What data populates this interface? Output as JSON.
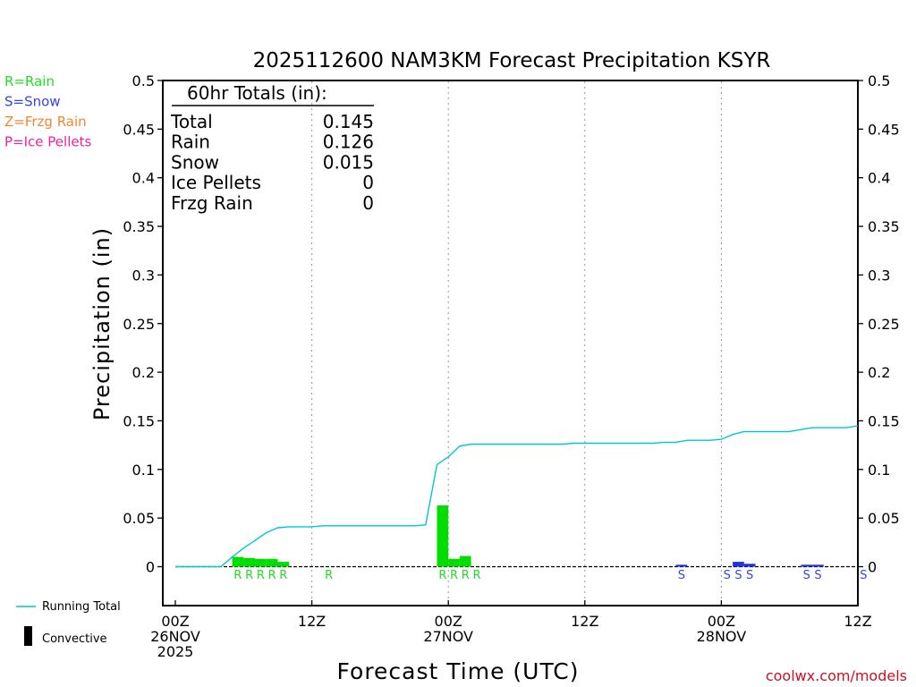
{
  "chart_data": {
    "type": "bar",
    "title": "2025112600 NAM3KM Forecast Precipitation KSYR",
    "xlabel": "Forecast Time (UTC)",
    "ylabel": "Precipitation (in)",
    "ylim": [
      -0.04,
      0.5
    ],
    "xlim_hours": [
      0,
      60
    ],
    "y_ticks": [
      0,
      0.05,
      0.1,
      0.15,
      0.2,
      0.25,
      0.3,
      0.35,
      0.4,
      0.45,
      0.5
    ],
    "y_tick_labels": [
      "0",
      "0.05",
      "0.1",
      "0.15",
      "0.2",
      "0.25",
      "0.3",
      "0.35",
      "0.4",
      "0.45",
      "0.5"
    ],
    "x_ticks": [
      {
        "hour": 0,
        "lines": [
          "00Z",
          "26NOV",
          "2025"
        ]
      },
      {
        "hour": 12,
        "lines": [
          "12Z"
        ]
      },
      {
        "hour": 24,
        "lines": [
          "00Z",
          "27NOV"
        ]
      },
      {
        "hour": 36,
        "lines": [
          "12Z"
        ]
      },
      {
        "hour": 48,
        "lines": [
          "00Z",
          "28NOV"
        ]
      },
      {
        "hour": 60,
        "lines": [
          "12Z"
        ]
      }
    ],
    "grid_hours": [
      12,
      24,
      36,
      48
    ],
    "hourly_precip": [
      {
        "hour": 5,
        "value": 0.01,
        "ptype": "R"
      },
      {
        "hour": 6,
        "value": 0.009,
        "ptype": "R"
      },
      {
        "hour": 7,
        "value": 0.008,
        "ptype": "R"
      },
      {
        "hour": 8,
        "value": 0.008,
        "ptype": "R"
      },
      {
        "hour": 9,
        "value": 0.005,
        "ptype": "R"
      },
      {
        "hour": 13,
        "value": 0.0,
        "ptype": "R"
      },
      {
        "hour": 23,
        "value": 0.063,
        "ptype": "R"
      },
      {
        "hour": 24,
        "value": 0.008,
        "ptype": "R"
      },
      {
        "hour": 25,
        "value": 0.011,
        "ptype": "R"
      },
      {
        "hour": 26,
        "value": 0.0,
        "ptype": "R"
      },
      {
        "hour": 44,
        "value": 0.002,
        "ptype": "S"
      },
      {
        "hour": 48,
        "value": 0.0,
        "ptype": "S"
      },
      {
        "hour": 49,
        "value": 0.005,
        "ptype": "S"
      },
      {
        "hour": 50,
        "value": 0.003,
        "ptype": "S"
      },
      {
        "hour": 55,
        "value": 0.002,
        "ptype": "S"
      },
      {
        "hour": 56,
        "value": 0.002,
        "ptype": "S"
      },
      {
        "hour": 60,
        "value": 0.0,
        "ptype": "S"
      }
    ],
    "running_total": {
      "hours": [
        0,
        1,
        2,
        3,
        4,
        5,
        6,
        7,
        8,
        9,
        10,
        11,
        12,
        13,
        14,
        15,
        16,
        17,
        18,
        19,
        20,
        21,
        22,
        23,
        24,
        25,
        26,
        27,
        28,
        29,
        30,
        31,
        32,
        33,
        34,
        35,
        36,
        37,
        38,
        39,
        40,
        41,
        42,
        43,
        44,
        45,
        46,
        47,
        48,
        49,
        50,
        51,
        52,
        53,
        54,
        55,
        56,
        57,
        58,
        59,
        60
      ],
      "values": [
        0,
        0,
        0,
        0,
        0,
        0.01,
        0.019,
        0.027,
        0.035,
        0.04,
        0.041,
        0.041,
        0.041,
        0.042,
        0.042,
        0.042,
        0.042,
        0.042,
        0.042,
        0.042,
        0.042,
        0.042,
        0.043,
        0.105,
        0.113,
        0.124,
        0.126,
        0.126,
        0.126,
        0.126,
        0.126,
        0.126,
        0.126,
        0.126,
        0.126,
        0.127,
        0.127,
        0.127,
        0.127,
        0.127,
        0.127,
        0.127,
        0.127,
        0.128,
        0.128,
        0.13,
        0.13,
        0.13,
        0.131,
        0.136,
        0.139,
        0.139,
        0.139,
        0.139,
        0.139,
        0.141,
        0.143,
        0.143,
        0.143,
        0.143,
        0.145
      ]
    },
    "totals_box": {
      "title": "60hr Totals (in):",
      "rows": [
        {
          "label": "Total",
          "value": "0.145"
        },
        {
          "label": "Rain",
          "value": "0.126"
        },
        {
          "label": "Snow",
          "value": "0.015"
        },
        {
          "label": "Ice Pellets",
          "value": "0"
        },
        {
          "label": "Frzg Rain",
          "value": "0"
        }
      ]
    },
    "ptype_legend": [
      {
        "code": "R",
        "text": "R=Rain",
        "color": "#22dd22"
      },
      {
        "code": "S",
        "text": "S=Snow",
        "color": "#3344ee"
      },
      {
        "code": "Z",
        "text": "Z=Frzg Rain",
        "color": "#ee8833"
      },
      {
        "code": "P",
        "text": "P=Ice Pellets",
        "color": "#ee2299"
      }
    ],
    "series_legend": [
      {
        "name": "Running Total",
        "color": "#00c8d2"
      },
      {
        "name": "Convective",
        "color": "#000000"
      }
    ],
    "colors": {
      "rain_bar": "#00dd00",
      "snow_bar": "#2233dd",
      "running_total": "#00c8d2"
    },
    "credit": "coolwx.com/models"
  }
}
